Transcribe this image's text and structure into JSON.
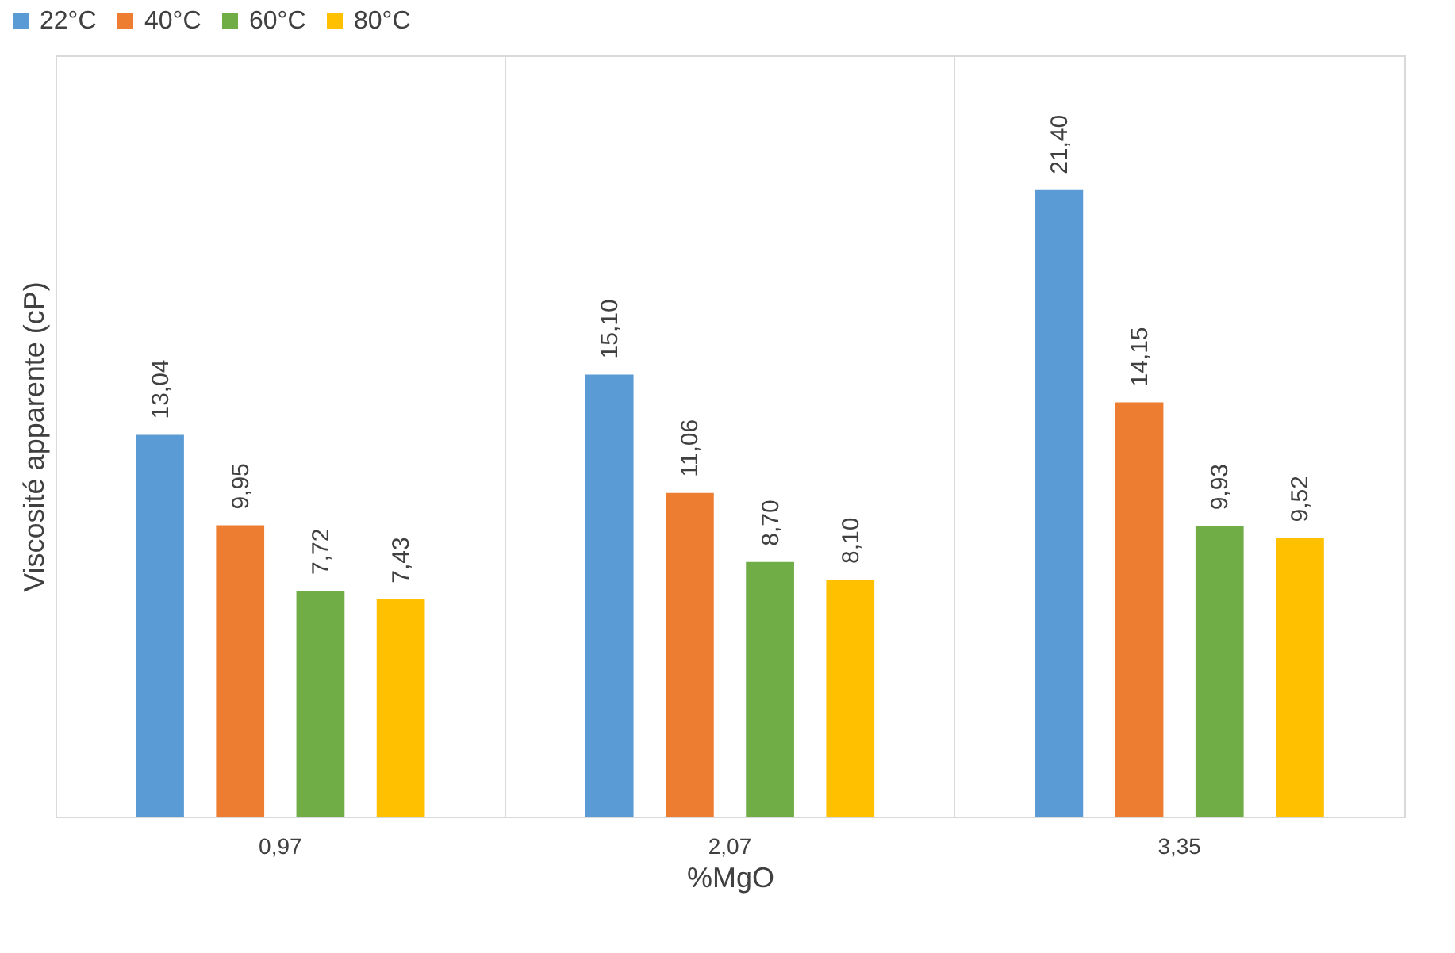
{
  "chart_data": {
    "type": "bar",
    "xlabel": "%MgO",
    "ylabel": "Viscosité apparente (cP)",
    "categories": [
      "0,97",
      "2,07",
      "3,35"
    ],
    "series": [
      {
        "name": "22°C",
        "color": "#5b9bd5",
        "values": [
          13.04,
          15.1,
          21.4
        ],
        "value_labels": [
          "13,04",
          "15,10",
          "21,40"
        ]
      },
      {
        "name": "40°C",
        "color": "#ed7d31",
        "values": [
          9.95,
          11.06,
          14.15
        ],
        "value_labels": [
          "9,95",
          "11,06",
          "14,15"
        ]
      },
      {
        "name": "60°C",
        "color": "#70ad47",
        "values": [
          7.72,
          8.7,
          9.93
        ],
        "value_labels": [
          "7,72",
          "8,70",
          "9,93"
        ]
      },
      {
        "name": "80°C",
        "color": "#ffc000",
        "values": [
          7.43,
          8.1,
          9.52
        ],
        "value_labels": [
          "7,43",
          "8,10",
          "9,52"
        ]
      }
    ],
    "ylim": [
      0,
      26
    ],
    "grid": "x",
    "legend": "top left",
    "tick_labels": "x"
  }
}
